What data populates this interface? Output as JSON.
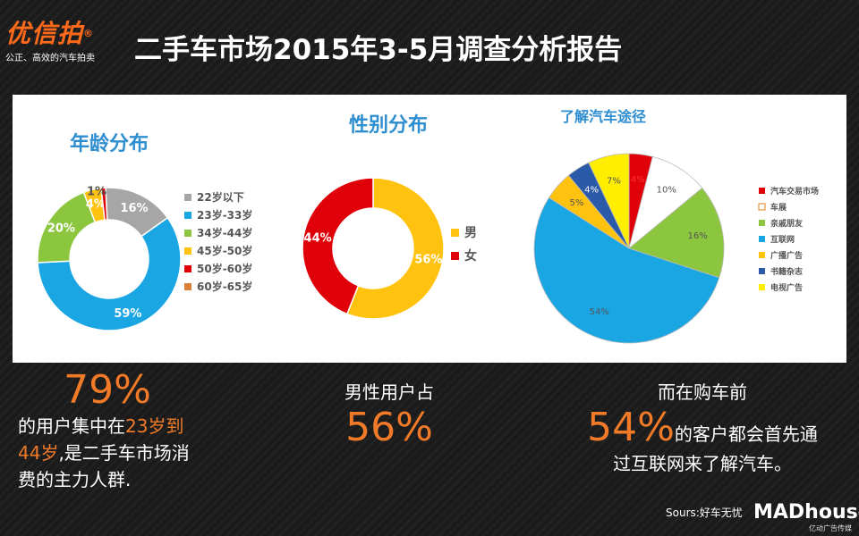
{
  "logo": {
    "name": "优信拍",
    "registered": "®",
    "tagline": "公正、高效的汽车拍卖"
  },
  "title": "二手车市场2015年3-5月调查分析报告",
  "chart_data": [
    {
      "type": "pie",
      "variant": "donut",
      "title": "年龄分布",
      "legend_position": "right",
      "slices": [
        {
          "label": "22岁以下",
          "value": 16,
          "display": "16%",
          "color": "#a6a6a6"
        },
        {
          "label": "23岁-33岁",
          "value": 59,
          "display": "59%",
          "color": "#1aa5e3"
        },
        {
          "label": "34岁-44岁",
          "value": 20,
          "display": "20%",
          "color": "#8cc63f"
        },
        {
          "label": "45岁-50岁",
          "value": 4,
          "display": "4%",
          "color": "#ffc20e"
        },
        {
          "label": "50岁-60岁",
          "value": 1,
          "display": "1%",
          "color": "#e0000a"
        },
        {
          "label": "60岁-65岁",
          "value": 0,
          "display": "",
          "color": "#d98236"
        }
      ]
    },
    {
      "type": "pie",
      "variant": "donut",
      "title": "性别分布",
      "legend_position": "right",
      "slices": [
        {
          "label": "男",
          "value": 56,
          "display": "56%",
          "color": "#ffc20e"
        },
        {
          "label": "女",
          "value": 44,
          "display": "44%",
          "color": "#e0000a"
        }
      ]
    },
    {
      "type": "pie",
      "title": "了解汽车途径",
      "legend_position": "right",
      "slices": [
        {
          "label": "汽车交易市场",
          "value": 4,
          "display": "4%",
          "color": "#e0000a"
        },
        {
          "label": "车展",
          "value": 10,
          "display": "10%",
          "color": "#ffffff"
        },
        {
          "label": "亲戚朋友",
          "value": 16,
          "display": "16%",
          "color": "#8cc63f"
        },
        {
          "label": "互联网",
          "value": 54,
          "display": "54%",
          "color": "#1aa5e3"
        },
        {
          "label": "广播广告",
          "value": 5,
          "display": "5%",
          "color": "#ffc20e"
        },
        {
          "label": "书籍杂志",
          "value": 4,
          "display": "4%",
          "color": "#2a5aa8"
        },
        {
          "label": "电视广告",
          "value": 7,
          "display": "7%",
          "color": "#ffee00"
        }
      ]
    }
  ],
  "stat1": {
    "big": "79%",
    "line1a": "的用户集中在",
    "line1b": "23岁到",
    "line2a": "44岁",
    "line2b": ",是二手车市场消",
    "line3": "费的主力人群."
  },
  "stat2": {
    "line1": "男性用户占",
    "big": "56%"
  },
  "stat3": {
    "line1": "而在购车前",
    "big": "54%",
    "line2": "的客户都会首先通",
    "line3": "过互联网来了解汽车。"
  },
  "source": "Sours:好车无忧",
  "brand": {
    "name": "MADhouse",
    "sub": "亿动广告传媒"
  }
}
